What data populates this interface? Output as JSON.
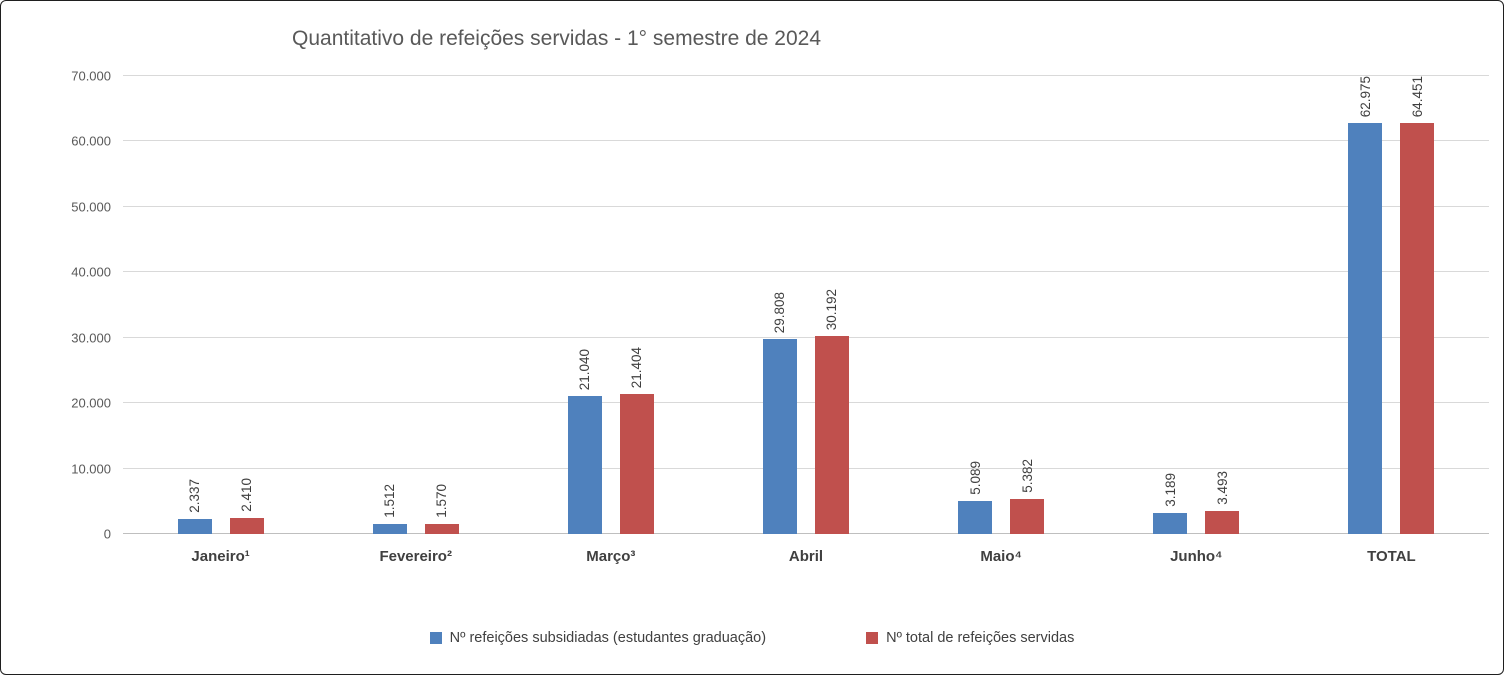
{
  "chart_data": {
    "type": "bar",
    "title": "Quantitativo de refeições servidas - 1° semestre de 2024",
    "categories": [
      "Janeiro¹",
      "Fevereiro²",
      "Março³",
      "Abril",
      "Maio⁴",
      "Junho⁴",
      "TOTAL"
    ],
    "series": [
      {
        "name": "Nº refeições subsidiadas (estudantes graduação)",
        "color": "#4F81BD",
        "values": [
          2337,
          1512,
          21040,
          29808,
          5089,
          3189,
          62975
        ],
        "labels": [
          "2.337",
          "1.512",
          "21.040",
          "29.808",
          "5.089",
          "3.189",
          "62.975"
        ]
      },
      {
        "name": "Nº total de refeições servidas",
        "color": "#C0504D",
        "values": [
          2410,
          1570,
          21404,
          30192,
          5382,
          3493,
          64451
        ],
        "labels": [
          "2.410",
          "1.570",
          "21.404",
          "30.192",
          "5.382",
          "3.493",
          "64.451"
        ]
      }
    ],
    "ylim": [
      0,
      70000
    ],
    "yticks": [
      0,
      10000,
      20000,
      30000,
      40000,
      50000,
      60000,
      70000
    ],
    "ytick_labels": [
      "0",
      "10.000",
      "20.000",
      "30.000",
      "40.000",
      "50.000",
      "60.000",
      "70.000"
    ],
    "grid": true,
    "legend_position": "bottom",
    "data_label_orientation": "vertical"
  }
}
